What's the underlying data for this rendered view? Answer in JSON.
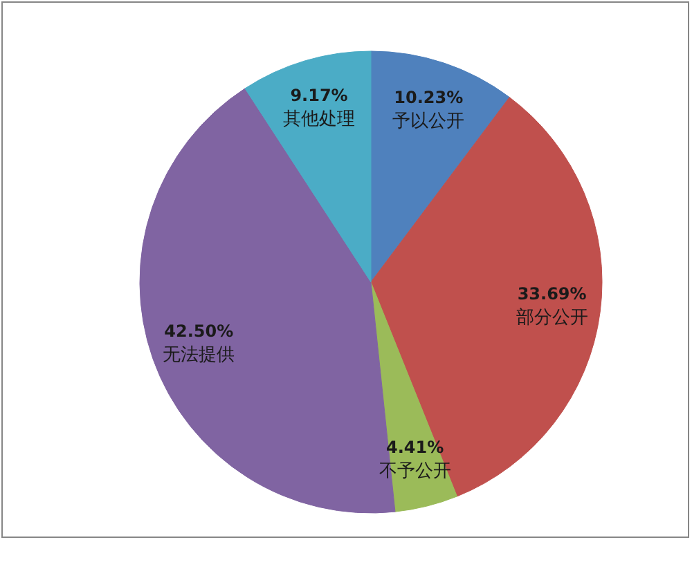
{
  "chart_data": {
    "type": "pie",
    "categories": [
      "予以公开",
      "部分公开",
      "不予公开",
      "无法提供",
      "其他处理"
    ],
    "values": [
      10.23,
      33.69,
      4.41,
      42.5,
      9.17
    ],
    "value_labels": [
      "10.23%",
      "33.69%",
      "4.41%",
      "42.50%",
      "9.17%"
    ],
    "colors": [
      "#4f81bd",
      "#c0504d",
      "#9bbb59",
      "#8064a2",
      "#4bacc6"
    ]
  }
}
